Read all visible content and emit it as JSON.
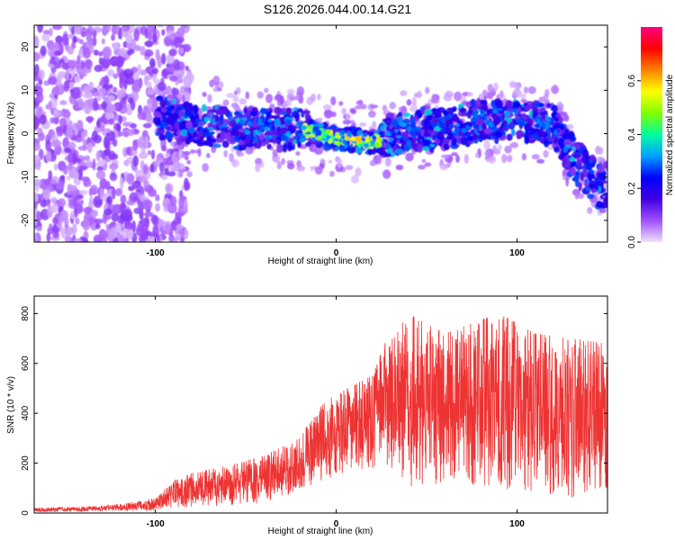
{
  "title": "S126.2026.044.00.14.G21",
  "chart_data": [
    {
      "type": "heatmap",
      "xlabel": "Height of straight line (km)",
      "ylabel": "Frequency (Hz)",
      "xlim": [
        -167,
        150
      ],
      "ylim": [
        -25,
        25
      ],
      "xticks": [
        {
          "value": -100,
          "label": "-100"
        },
        {
          "value": 0,
          "label": "0"
        },
        {
          "value": 100,
          "label": "100"
        }
      ],
      "yticks": [
        {
          "value": 20,
          "label": "20"
        },
        {
          "value": 10,
          "label": "10"
        },
        {
          "value": 0,
          "label": "0"
        },
        {
          "value": -10,
          "label": "-10"
        },
        {
          "value": -20,
          "label": "-20"
        }
      ],
      "ridge": [
        [
          -110,
          5
        ],
        [
          -80,
          2
        ],
        [
          -50,
          1
        ],
        [
          -20,
          1
        ],
        [
          0,
          -1
        ],
        [
          20,
          -2
        ],
        [
          40,
          1
        ],
        [
          60,
          1
        ],
        [
          80,
          3
        ],
        [
          100,
          3
        ],
        [
          120,
          2
        ],
        [
          130,
          -5
        ],
        [
          145,
          -12
        ]
      ],
      "colorbar": {
        "label": "Normalized spectral amplitude",
        "range": [
          0,
          0.8
        ],
        "ticks": [
          {
            "value": 0.0,
            "label": "0.0"
          },
          {
            "value": 0.2,
            "label": "0.2"
          },
          {
            "value": 0.4,
            "label": "0.4"
          },
          {
            "value": 0.6,
            "label": "0.6"
          }
        ],
        "colors": [
          "#f0e0ff",
          "#a050ff",
          "#4000e0",
          "#0000ff",
          "#00a0ff",
          "#00ffa0",
          "#80ff00",
          "#ffff00",
          "#ff8000",
          "#ff0000",
          "#ff0080"
        ]
      }
    },
    {
      "type": "line",
      "xlabel": "Height of straight line (km)",
      "ylabel": "SNR (10 * v/v)",
      "xlim": [
        -167,
        150
      ],
      "ylim": [
        0,
        870
      ],
      "color": "#ee3333",
      "xticks": [
        {
          "value": -100,
          "label": "-100"
        },
        {
          "value": 0,
          "label": "0"
        },
        {
          "value": 100,
          "label": "100"
        }
      ],
      "yticks": [
        {
          "value": 0,
          "label": "0"
        },
        {
          "value": 200,
          "label": "200"
        },
        {
          "value": 400,
          "label": "400"
        },
        {
          "value": 600,
          "label": "600"
        },
        {
          "value": 800,
          "label": "800"
        }
      ],
      "envelope": [
        [
          -167,
          5,
          20
        ],
        [
          -140,
          5,
          25
        ],
        [
          -120,
          8,
          35
        ],
        [
          -100,
          10,
          60
        ],
        [
          -90,
          20,
          130
        ],
        [
          -80,
          25,
          160
        ],
        [
          -60,
          30,
          190
        ],
        [
          -40,
          40,
          230
        ],
        [
          -20,
          80,
          300
        ],
        [
          -10,
          120,
          420
        ],
        [
          0,
          150,
          480
        ],
        [
          20,
          180,
          550
        ],
        [
          28,
          160,
          700
        ],
        [
          40,
          100,
          800
        ],
        [
          60,
          120,
          720
        ],
        [
          90,
          100,
          800
        ],
        [
          110,
          80,
          720
        ],
        [
          130,
          60,
          700
        ],
        [
          150,
          100,
          680
        ]
      ]
    }
  ]
}
